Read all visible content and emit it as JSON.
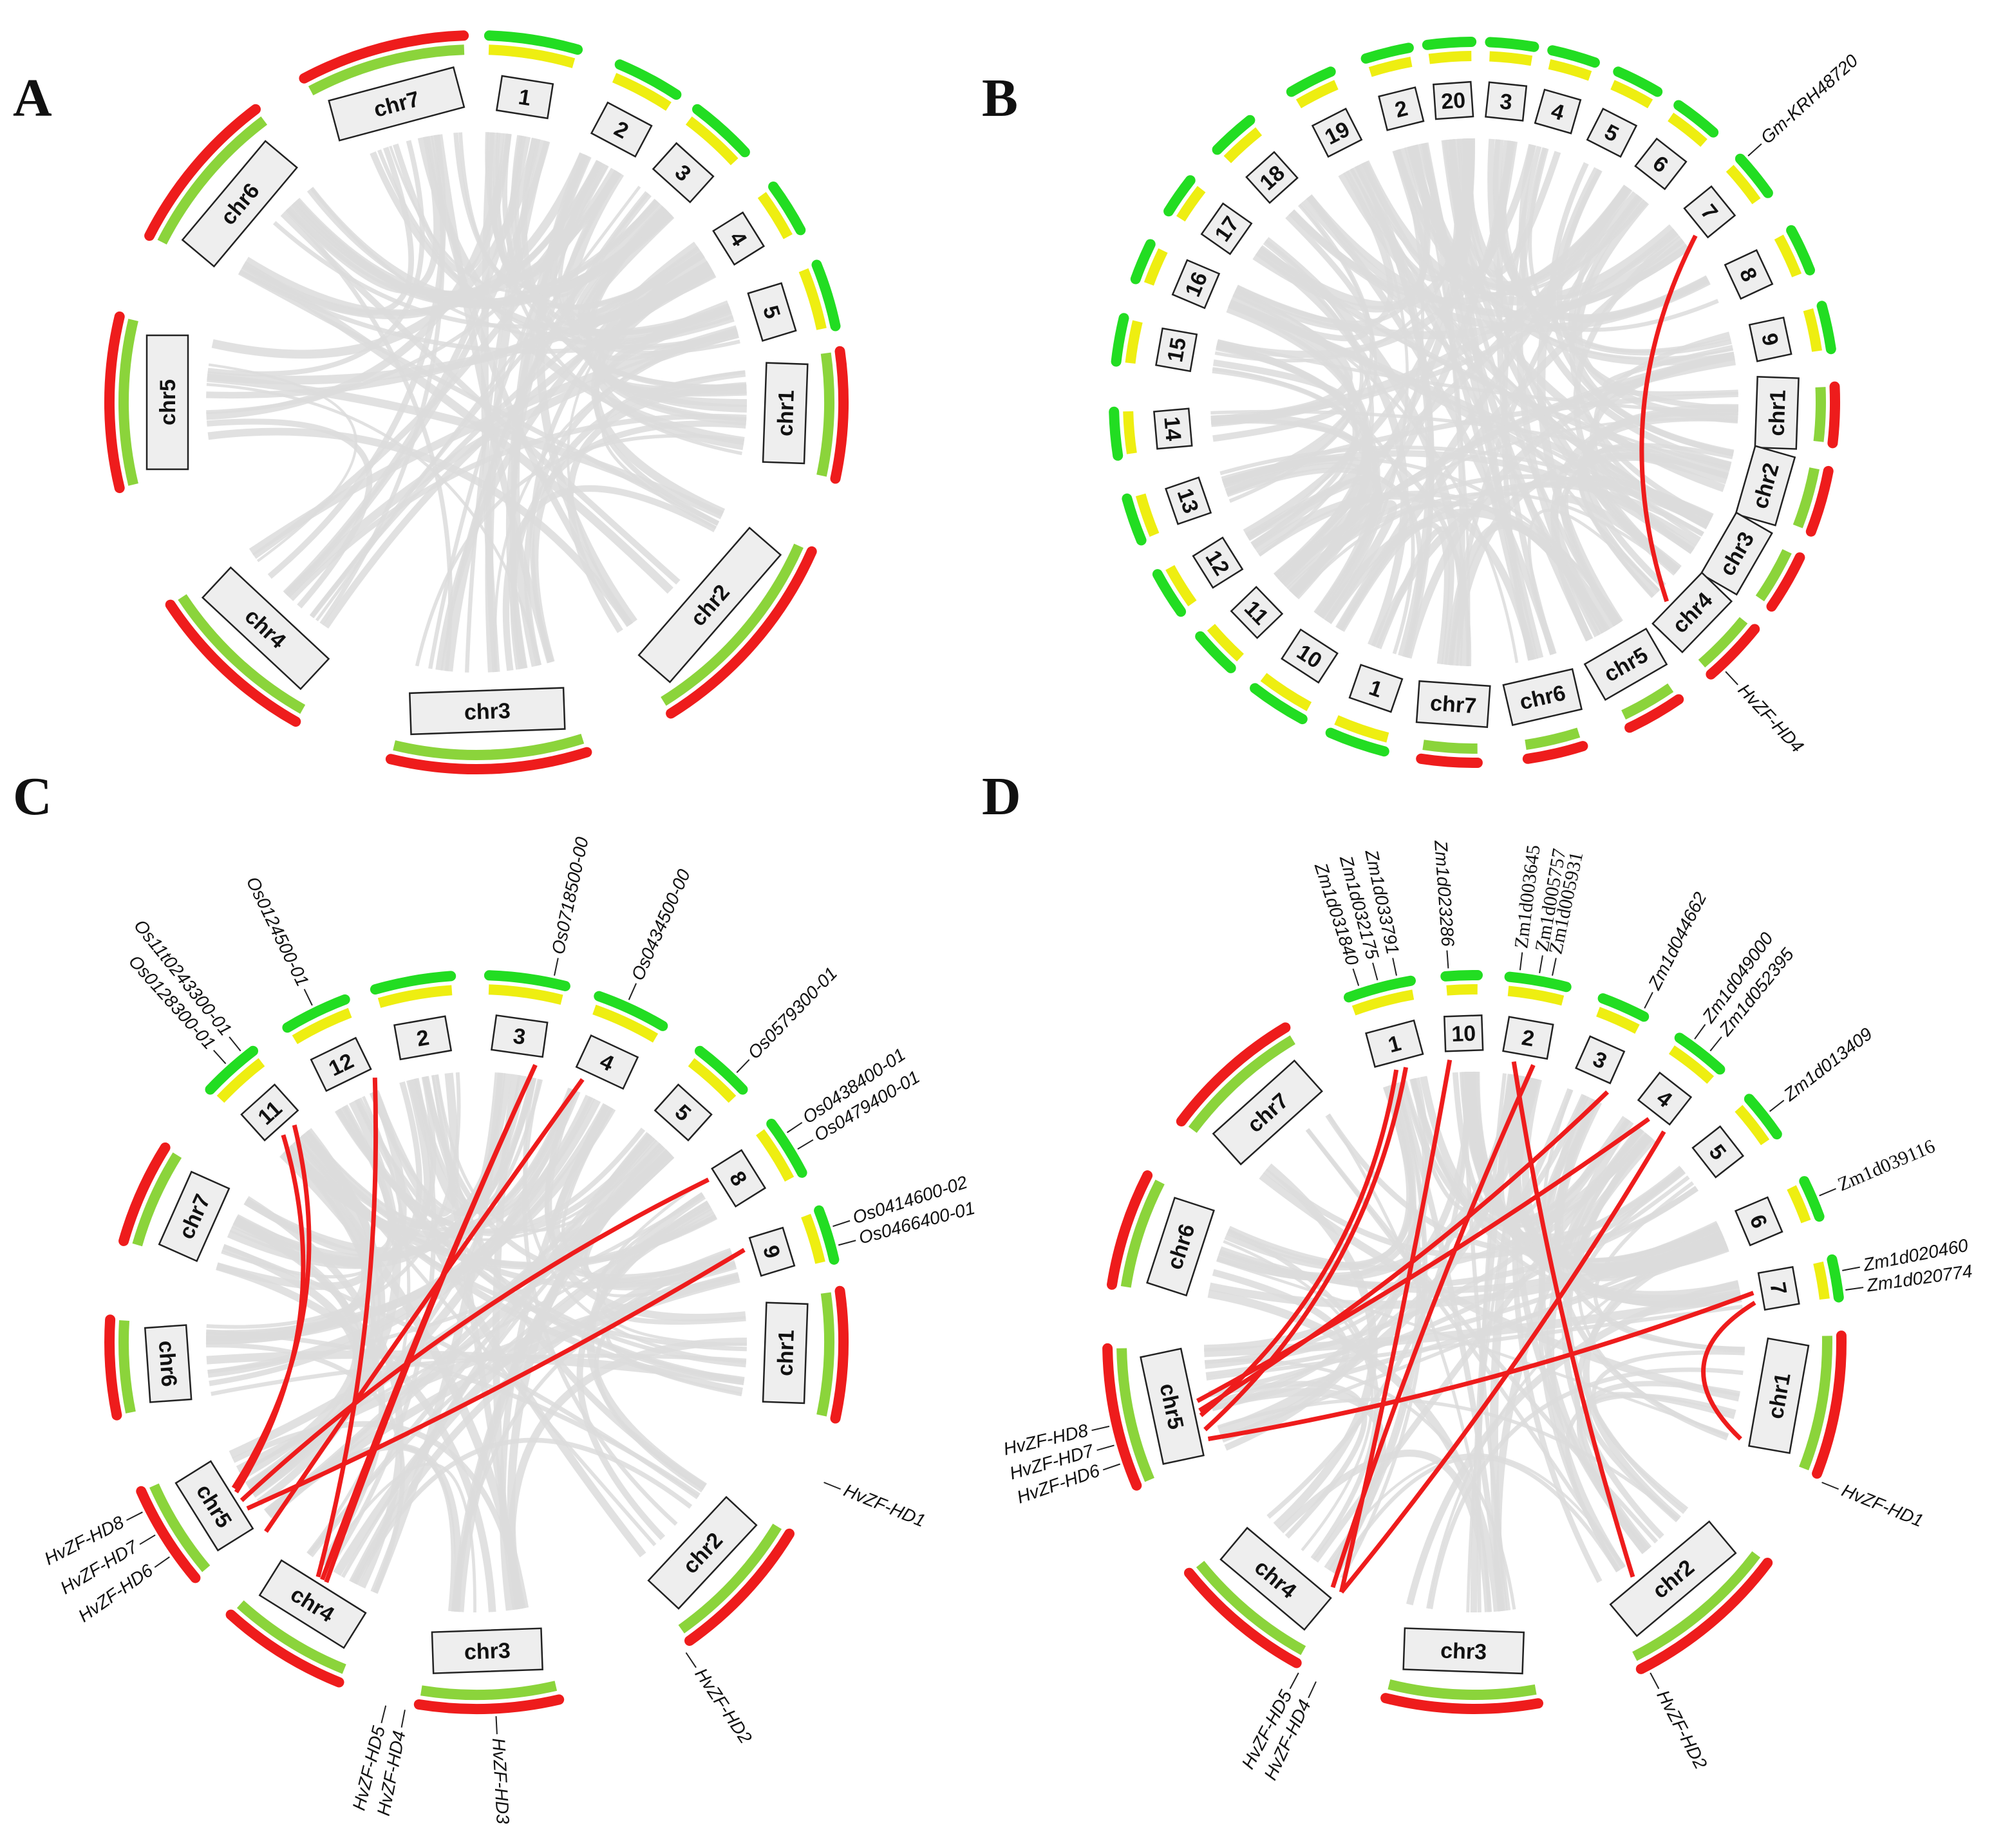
{
  "colors": {
    "red": "#ee1c1c",
    "green": "#22dd22",
    "yellow": "#eeee11",
    "light_green": "#8bd43b",
    "gray": "#dcdcdc"
  },
  "panels": [
    {
      "letter": "A",
      "species": [
        {
          "id": "chr1",
          "label": "chr1",
          "ring": "red",
          "inner": "light_green",
          "theta": 92,
          "span": 20
        },
        {
          "id": "chr2",
          "label": "chr2",
          "ring": "red",
          "inner": "light_green",
          "theta": 131,
          "span": 34
        },
        {
          "id": "chr3",
          "label": "chr3",
          "ring": "red",
          "inner": "light_green",
          "theta": 178,
          "span": 31
        },
        {
          "id": "chr4",
          "label": "chr4",
          "ring": "red",
          "inner": "light_green",
          "theta": 223,
          "span": 27
        },
        {
          "id": "chr5",
          "label": "chr5",
          "ring": "red",
          "inner": "light_green",
          "theta": 270,
          "span": 27
        },
        {
          "id": "chr6",
          "label": "chr6",
          "ring": "red",
          "inner": "light_green",
          "theta": 310,
          "span": 26
        },
        {
          "id": "chr7",
          "label": "chr7",
          "ring": "red",
          "inner": "light_green",
          "theta": 345,
          "span": 26
        },
        {
          "id": "1",
          "label": "1",
          "ring": "green",
          "inner": "yellow",
          "theta": 9,
          "span": 14
        },
        {
          "id": "2",
          "label": "2",
          "ring": "green",
          "inner": "yellow",
          "theta": 28,
          "span": 10
        },
        {
          "id": "3",
          "label": "3",
          "ring": "green",
          "inner": "yellow",
          "theta": 42,
          "span": 10
        },
        {
          "id": "4",
          "label": "4",
          "ring": "green",
          "inner": "yellow",
          "theta": 58,
          "span": 8
        },
        {
          "id": "5",
          "label": "5",
          "ring": "green",
          "inner": "yellow",
          "theta": 73,
          "span": 10
        }
      ],
      "links": [],
      "gene_labels": []
    },
    {
      "letter": "B",
      "species": [
        {
          "id": "2",
          "label": "2",
          "ring": "green",
          "inner": "yellow",
          "theta": 346,
          "span": 7
        },
        {
          "id": "20",
          "label": "20",
          "ring": "green",
          "inner": "yellow",
          "theta": 356,
          "span": 7
        },
        {
          "id": "3",
          "label": "3",
          "ring": "green",
          "inner": "yellow",
          "theta": 6,
          "span": 7
        },
        {
          "id": "4",
          "label": "4",
          "ring": "green",
          "inner": "yellow",
          "theta": 16,
          "span": 7
        },
        {
          "id": "5",
          "label": "5",
          "ring": "green",
          "inner": "yellow",
          "theta": 27,
          "span": 7
        },
        {
          "id": "6",
          "label": "6",
          "ring": "green",
          "inner": "yellow",
          "theta": 38,
          "span": 7
        },
        {
          "id": "7",
          "label": "7",
          "ring": "green",
          "inner": "yellow",
          "theta": 51,
          "span": 7
        },
        {
          "id": "8",
          "label": "8",
          "ring": "green",
          "inner": "yellow",
          "theta": 65,
          "span": 7
        },
        {
          "id": "9",
          "label": "9",
          "ring": "green",
          "inner": "yellow",
          "theta": 78,
          "span": 7
        },
        {
          "id": "chr1",
          "label": "chr1",
          "ring": "red",
          "inner": "light_green",
          "theta": 92,
          "span": 9
        },
        {
          "id": "chr2",
          "label": "chr2",
          "ring": "red",
          "inner": "light_green",
          "theta": 106,
          "span": 10
        },
        {
          "id": "chr3",
          "label": "chr3",
          "ring": "red",
          "inner": "light_green",
          "theta": 120,
          "span": 9
        },
        {
          "id": "chr4",
          "label": "chr4",
          "ring": "red",
          "inner": "light_green",
          "theta": 134,
          "span": 10
        },
        {
          "id": "chr5",
          "label": "chr5",
          "ring": "red",
          "inner": "light_green",
          "theta": 150,
          "span": 9
        },
        {
          "id": "chr6",
          "label": "chr6",
          "ring": "red",
          "inner": "light_green",
          "theta": 167,
          "span": 9
        },
        {
          "id": "chr7",
          "label": "chr7",
          "ring": "red",
          "inner": "light_green",
          "theta": 184,
          "span": 9
        },
        {
          "id": "1",
          "label": "1",
          "ring": "green",
          "inner": "yellow",
          "theta": 199,
          "span": 9
        },
        {
          "id": "10",
          "label": "10",
          "ring": "green",
          "inner": "yellow",
          "theta": 213,
          "span": 9
        },
        {
          "id": "11",
          "label": "11",
          "ring": "green",
          "inner": "yellow",
          "theta": 226,
          "span": 7
        },
        {
          "id": "12",
          "label": "12",
          "ring": "green",
          "inner": "yellow",
          "theta": 238,
          "span": 7
        },
        {
          "id": "13",
          "label": "13",
          "ring": "green",
          "inner": "yellow",
          "theta": 251,
          "span": 7
        },
        {
          "id": "14",
          "label": "14",
          "ring": "green",
          "inner": "yellow",
          "theta": 265,
          "span": 7
        },
        {
          "id": "15",
          "label": "15",
          "ring": "green",
          "inner": "yellow",
          "theta": 280,
          "span": 7
        },
        {
          "id": "16",
          "label": "16",
          "ring": "green",
          "inner": "yellow",
          "theta": 293,
          "span": 6
        },
        {
          "id": "17",
          "label": "17",
          "ring": "green",
          "inner": "yellow",
          "theta": 305,
          "span": 6
        },
        {
          "id": "18",
          "label": "18",
          "ring": "green",
          "inner": "yellow",
          "theta": 318,
          "span": 7
        },
        {
          "id": "19",
          "label": "19",
          "ring": "green",
          "inner": "yellow",
          "theta": 333,
          "span": 7
        }
      ],
      "links": [
        [
          53,
          136
        ]
      ],
      "gene_labels": [
        {
          "text": "Gm-KRH48720",
          "theta": 48
        },
        {
          "text": "HvZF-HD4",
          "theta": 137
        }
      ]
    },
    {
      "letter": "C",
      "species": [
        {
          "id": "2",
          "label": "2",
          "ring": "green",
          "inner": "yellow",
          "theta": 350,
          "span": 12
        },
        {
          "id": "3",
          "label": "3",
          "ring": "green",
          "inner": "yellow",
          "theta": 8,
          "span": 12
        },
        {
          "id": "4",
          "label": "4",
          "ring": "green",
          "inner": "yellow",
          "theta": 25,
          "span": 11
        },
        {
          "id": "5",
          "label": "5",
          "ring": "green",
          "inner": "yellow",
          "theta": 42,
          "span": 9
        },
        {
          "id": "8",
          "label": "8",
          "ring": "green",
          "inner": "yellow",
          "theta": 58,
          "span": 9
        },
        {
          "id": "9",
          "label": "9",
          "ring": "green",
          "inner": "yellow",
          "theta": 73,
          "span": 8
        },
        {
          "id": "chr1",
          "label": "chr1",
          "ring": "red",
          "inner": "light_green",
          "theta": 92,
          "span": 20
        },
        {
          "id": "chr2",
          "label": "chr2",
          "ring": "red",
          "inner": "light_green",
          "theta": 133,
          "span": 23
        },
        {
          "id": "chr3",
          "label": "chr3",
          "ring": "red",
          "inner": "light_green",
          "theta": 178,
          "span": 22
        },
        {
          "id": "chr4",
          "label": "chr4",
          "ring": "red",
          "inner": "light_green",
          "theta": 212,
          "span": 20
        },
        {
          "id": "chr5",
          "label": "chr5",
          "ring": "red",
          "inner": "light_green",
          "theta": 238,
          "span": 16
        },
        {
          "id": "chr6",
          "label": "chr6",
          "ring": "red",
          "inner": "light_green",
          "theta": 266,
          "span": 15
        },
        {
          "id": "chr7",
          "label": "chr7",
          "ring": "red",
          "inner": "light_green",
          "theta": 294,
          "span": 16
        },
        {
          "id": "11",
          "label": "11",
          "ring": "green",
          "inner": "yellow",
          "theta": 318,
          "span": 9
        },
        {
          "id": "12",
          "label": "12",
          "ring": "green",
          "inner": "yellow",
          "theta": 334,
          "span": 10
        }
      ],
      "links": [
        [
          12,
          212
        ],
        [
          22,
          228
        ],
        [
          55,
          236
        ],
        [
          71,
          234
        ],
        [
          317,
          238
        ],
        [
          320,
          239
        ],
        [
          339,
          214
        ],
        [
          12,
          213
        ]
      ],
      "gene_labels": [
        {
          "text": "Os0718500-00",
          "theta": 12
        },
        {
          "text": "Os0434500-00",
          "theta": 24
        },
        {
          "text": "Os0579300-01",
          "theta": 44
        },
        {
          "text": "Os0438400-01",
          "theta": 56
        },
        {
          "text": "Os0479400-01",
          "theta": 59
        },
        {
          "text": "Os0414600-02",
          "theta": 72
        },
        {
          "text": "Os0466400-01",
          "theta": 75
        },
        {
          "text": "HvZF-HD1",
          "theta": 112
        },
        {
          "text": "HvZF-HD2",
          "theta": 146
        },
        {
          "text": "HvZF-HD3",
          "theta": 177
        },
        {
          "text": "HvZF-HD4",
          "theta": 191
        },
        {
          "text": "HvZF-HD5",
          "theta": 194
        },
        {
          "text": "HvZF-HD6",
          "theta": 235
        },
        {
          "text": "HvZF-HD7",
          "theta": 239
        },
        {
          "text": "HvZF-HD8",
          "theta": 243
        },
        {
          "text": "Os0128300-01",
          "theta": 318
        },
        {
          "text": "Os11t0243300-01",
          "theta": 321
        },
        {
          "text": "Os0124500-01",
          "theta": 334
        }
      ]
    },
    {
      "letter": "D",
      "species": [
        {
          "id": "1",
          "label": "1",
          "ring": "green",
          "inner": "yellow",
          "theta": 345,
          "span": 10
        },
        {
          "id": "10",
          "label": "10",
          "ring": "green",
          "inner": "yellow",
          "theta": 358,
          "span": 5
        },
        {
          "id": "2",
          "label": "2",
          "ring": "green",
          "inner": "yellow",
          "theta": 10,
          "span": 9
        },
        {
          "id": "3",
          "label": "3",
          "ring": "green",
          "inner": "yellow",
          "theta": 24,
          "span": 7
        },
        {
          "id": "4",
          "label": "4",
          "ring": "green",
          "inner": "yellow",
          "theta": 38,
          "span": 8
        },
        {
          "id": "5",
          "label": "5",
          "ring": "green",
          "inner": "yellow",
          "theta": 52,
          "span": 7
        },
        {
          "id": "6",
          "label": "6",
          "ring": "green",
          "inner": "yellow",
          "theta": 67,
          "span": 6
        },
        {
          "id": "7",
          "label": "7",
          "ring": "green",
          "inner": "yellow",
          "theta": 80,
          "span": 6
        },
        {
          "id": "chr1",
          "label": "chr1",
          "ring": "red",
          "inner": "light_green",
          "theta": 100,
          "span": 22
        },
        {
          "id": "chr2",
          "label": "chr2",
          "ring": "red",
          "inner": "light_green",
          "theta": 140,
          "span": 26
        },
        {
          "id": "chr3",
          "label": "chr3",
          "ring": "red",
          "inner": "light_green",
          "theta": 182,
          "span": 24
        },
        {
          "id": "chr4",
          "label": "chr4",
          "ring": "red",
          "inner": "light_green",
          "theta": 220,
          "span": 22
        },
        {
          "id": "chr5",
          "label": "chr5",
          "ring": "red",
          "inner": "light_green",
          "theta": 258,
          "span": 22
        },
        {
          "id": "chr6",
          "label": "chr6",
          "ring": "red",
          "inner": "light_green",
          "theta": 288,
          "span": 18
        },
        {
          "id": "chr7",
          "label": "chr7",
          "ring": "red",
          "inner": "light_green",
          "theta": 318,
          "span": 22
        }
      ],
      "links": [
        [
          344,
          255
        ],
        [
          346,
          252
        ],
        [
          355,
          208
        ],
        [
          8,
          146
        ],
        [
          12,
          210
        ],
        [
          28,
          256
        ],
        [
          38,
          258
        ],
        [
          42,
          208
        ],
        [
          80,
          250
        ],
        [
          82,
          110
        ]
      ],
      "gene_labels": [
        {
          "text": "Zm1d031840",
          "theta": 342
        },
        {
          "text": "Zm1d032175",
          "theta": 345
        },
        {
          "text": "Zm1d033791",
          "theta": 348
        },
        {
          "text": "Zm1d023286",
          "theta": 356
        },
        {
          "text": "Zm1d003645",
          "theta": 7
        },
        {
          "text": "Zm1d005757",
          "theta": 10
        },
        {
          "text": "Zm1d005931",
          "theta": 12
        },
        {
          "text": "Zm1d044662",
          "theta": 27
        },
        {
          "text": "Zm1d049000",
          "theta": 36
        },
        {
          "text": "Zm1d052395",
          "theta": 39
        },
        {
          "text": "Zm1d013409",
          "theta": 52
        },
        {
          "text": "Zm1d039116",
          "theta": 67
        },
        {
          "text": "Zm1d020460",
          "theta": 79
        },
        {
          "text": "Zm1d020774",
          "theta": 82
        },
        {
          "text": "HvZF-HD1",
          "theta": 112
        },
        {
          "text": "HvZF-HD2",
          "theta": 152
        },
        {
          "text": "HvZF-HD4",
          "theta": 205
        },
        {
          "text": "HvZF-HD5",
          "theta": 208
        },
        {
          "text": "HvZF-HD6",
          "theta": 251
        },
        {
          "text": "HvZF-HD7",
          "theta": 254
        },
        {
          "text": "HvZF-HD8",
          "theta": 257
        }
      ]
    }
  ]
}
